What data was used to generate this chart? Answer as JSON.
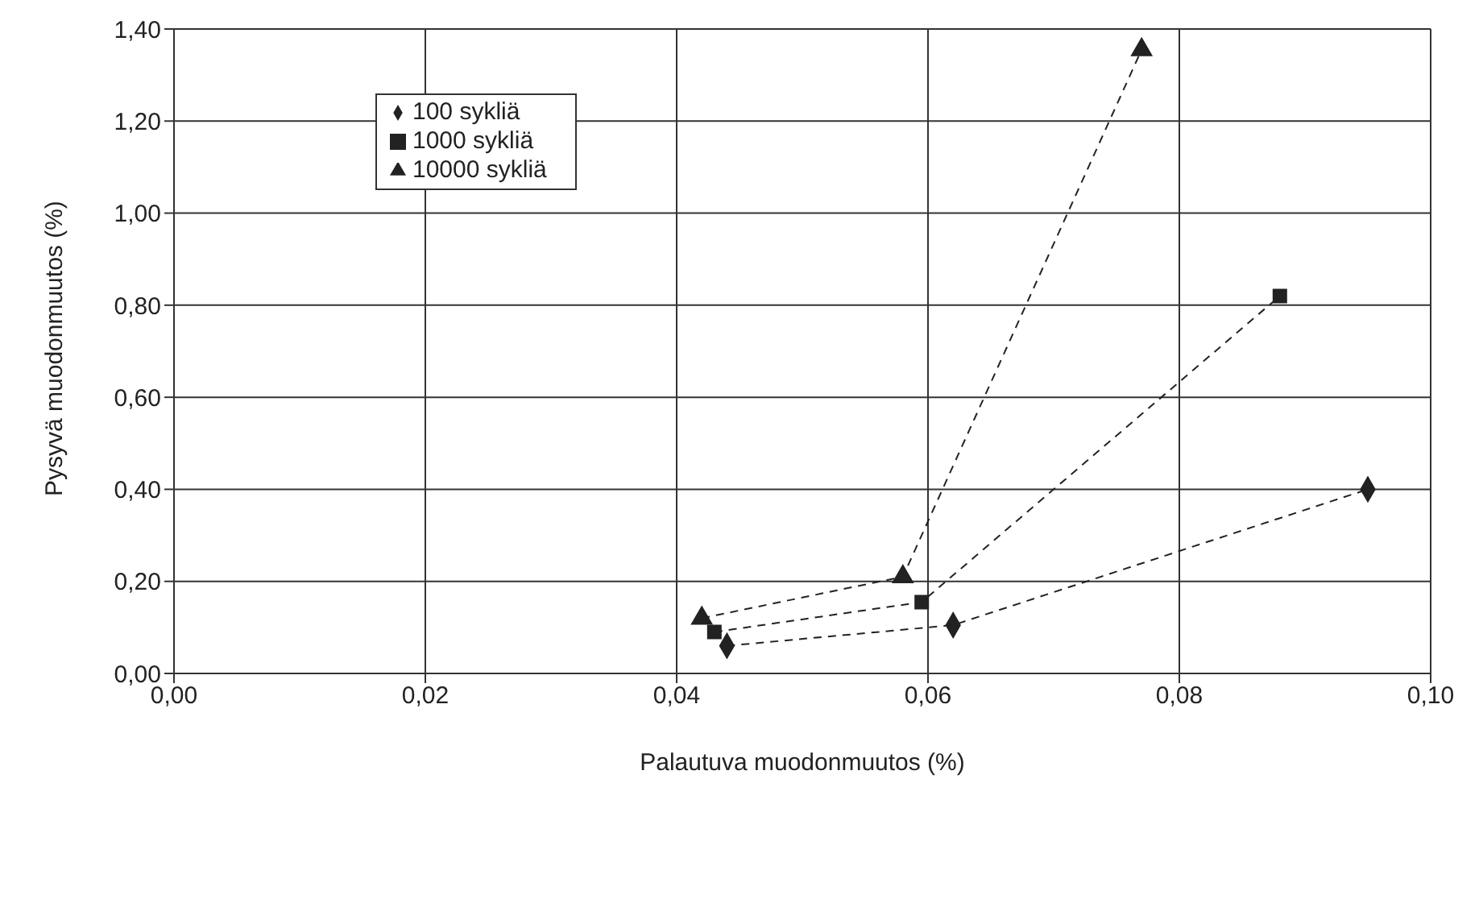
{
  "chart_data": {
    "type": "line",
    "xlabel": "Palautuva muodonmuutos (%)",
    "ylabel": "Pysyvä muodonmuutos (%)",
    "xlim": [
      0,
      0.1
    ],
    "xticks": [
      {
        "value": 0,
        "label": "0,00"
      },
      {
        "value": 0.02,
        "label": "0,02"
      },
      {
        "value": 0.04,
        "label": "0,04"
      },
      {
        "value": 0.06,
        "label": "0,06"
      },
      {
        "value": 0.08,
        "label": "0,08"
      },
      {
        "value": 0.1,
        "label": "0,10"
      }
    ],
    "ylim": [
      0,
      1.4
    ],
    "yticks": [
      {
        "value": 0,
        "label": "0,00"
      },
      {
        "value": 0.2,
        "label": "0,20"
      },
      {
        "value": 0.4,
        "label": "0,40"
      },
      {
        "value": 0.6,
        "label": "0,60"
      },
      {
        "value": 0.8,
        "label": "0,80"
      },
      {
        "value": 1,
        "label": "1,00"
      },
      {
        "value": 1.2,
        "label": "1,20"
      },
      {
        "value": 1.4,
        "label": "1,40"
      }
    ],
    "grid": true,
    "legend": "top left",
    "line_style": "dashed",
    "series": [
      {
        "name": "100 sykliä",
        "color": "#222222",
        "marker": "diamond",
        "x": [
          0.044,
          0.062,
          0.095
        ],
        "values": [
          0.06,
          0.105,
          0.4
        ]
      },
      {
        "name": "1000 sykliä",
        "color": "#222222",
        "marker": "square",
        "x": [
          0.043,
          0.0595,
          0.088
        ],
        "values": [
          0.09,
          0.155,
          0.82
        ]
      },
      {
        "name": "10000 sykliä",
        "color": "#222222",
        "marker": "triangle",
        "x": [
          0.042,
          0.058,
          0.077
        ],
        "values": [
          0.12,
          0.21,
          1.355
        ]
      }
    ]
  }
}
